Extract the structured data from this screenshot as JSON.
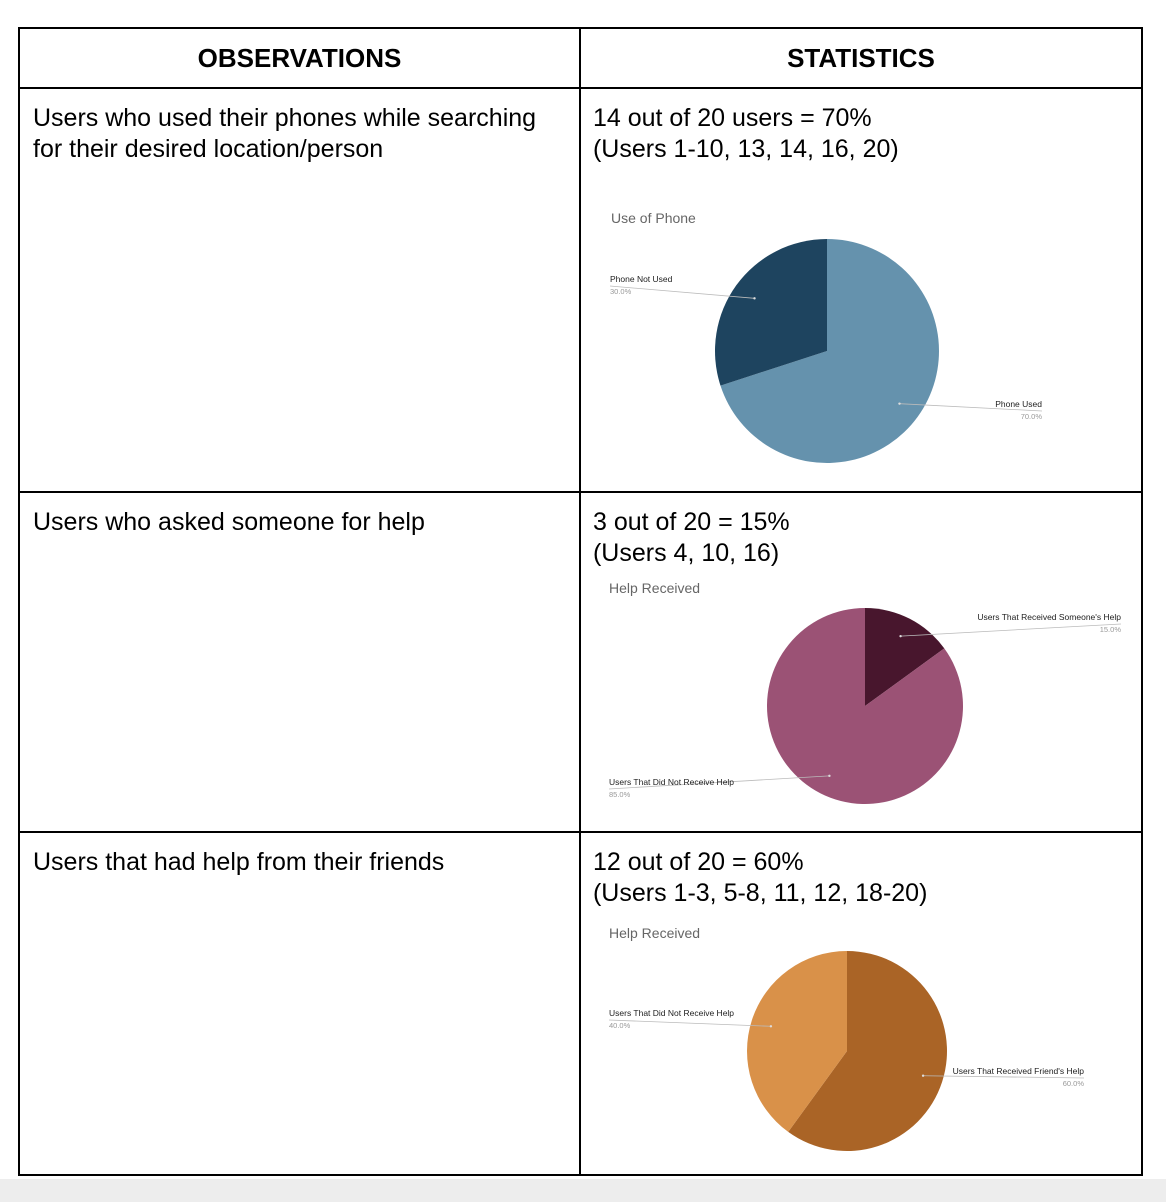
{
  "table": {
    "headers": {
      "observations": "OBSERVATIONS",
      "statistics": "STATISTICS"
    },
    "rows": [
      {
        "observation": "Users who used their phones while searching for their desired location/person",
        "statistic": "14 out of 20 users = 70%\n(Users 1-10, 13, 14, 16, 20)"
      },
      {
        "observation": "Users who asked someone for help",
        "statistic": "3 out of 20 = 15%\n(Users 4, 10, 16)"
      },
      {
        "observation": "Users that had help from their friends",
        "statistic": "12 out of 20 = 60%\n(Users 1-3, 5-8, 11, 12, 18-20)"
      }
    ]
  },
  "chart_data": [
    {
      "type": "pie",
      "title": "Use of Phone",
      "slices": [
        {
          "label": "Phone Used",
          "value": 70.0,
          "pct_label": "70.0%",
          "color": "#6592ad"
        },
        {
          "label": "Phone Not Used",
          "value": 30.0,
          "pct_label": "30.0%",
          "color": "#1e445f"
        }
      ]
    },
    {
      "type": "pie",
      "title": "Help Received",
      "slices": [
        {
          "label": "Users That Received Someone's Help",
          "value": 15.0,
          "pct_label": "15.0%",
          "color": "#48162d"
        },
        {
          "label": "Users That Did Not Receive Help",
          "value": 85.0,
          "pct_label": "85.0%",
          "color": "#9b5275"
        }
      ]
    },
    {
      "type": "pie",
      "title": "Help Received",
      "slices": [
        {
          "label": "Users That Received Friend's Help",
          "value": 60.0,
          "pct_label": "60.0%",
          "color": "#aa6426"
        },
        {
          "label": "Users That Did Not Receive Help",
          "value": 40.0,
          "pct_label": "40.0%",
          "color": "#d99149"
        }
      ]
    }
  ]
}
